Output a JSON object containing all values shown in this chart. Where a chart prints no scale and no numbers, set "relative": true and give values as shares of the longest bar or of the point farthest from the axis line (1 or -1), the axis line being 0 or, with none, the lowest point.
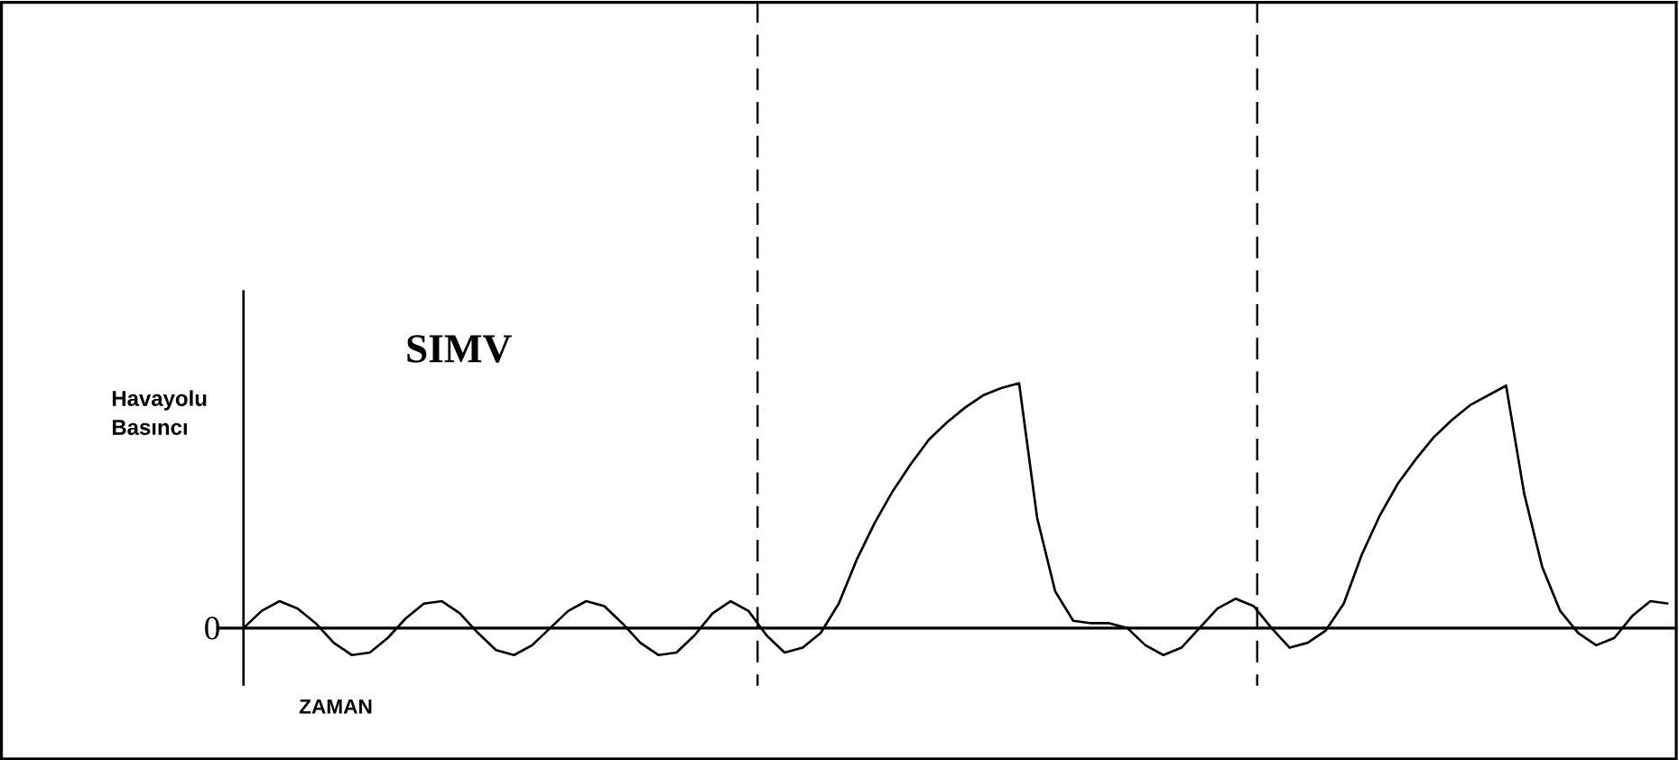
{
  "chart_data": {
    "type": "line",
    "title": "SIMV",
    "xlabel": "ZAMAN",
    "ylabel": "Havayolu Basıncı",
    "relative": true,
    "categories": [
      null,
      null,
      null,
      null,
      null,
      null,
      null,
      null,
      null,
      null,
      null,
      null,
      null,
      null,
      null,
      null,
      null,
      null,
      null,
      null,
      null,
      null,
      null,
      null,
      null,
      null,
      null,
      null,
      null,
      null,
      null,
      null,
      null,
      null,
      null,
      null,
      null,
      null,
      null,
      null,
      null,
      null,
      null,
      null,
      null,
      null,
      null,
      null,
      null,
      null,
      null,
      null,
      null,
      null,
      null,
      null,
      null,
      null,
      null,
      null,
      null,
      null,
      null,
      null,
      null,
      null,
      null,
      null,
      null,
      null,
      null,
      null,
      null,
      null,
      null,
      null,
      null,
      null,
      null,
      null
    ],
    "series": [
      {
        "color": "#000000",
        "values": [
          0,
          0.07,
          0.11,
          0.08,
          0.02,
          -0.06,
          -0.11,
          -0.1,
          -0.04,
          0.04,
          0.1,
          0.11,
          0.06,
          -0.02,
          -0.09,
          -0.11,
          -0.07,
          0,
          0.07,
          0.11,
          0.09,
          0.02,
          -0.06,
          -0.11,
          -0.1,
          -0.03,
          0.06,
          0.11,
          0.07,
          -0.03,
          -0.1,
          -0.08,
          -0.02,
          0.1,
          0.28,
          0.43,
          0.56,
          0.67,
          0.77,
          0.84,
          0.9,
          0.95,
          0.98,
          1,
          0.45,
          0.15,
          0.03,
          0.02,
          0.02,
          0,
          -0.07,
          -0.11,
          -0.08,
          0,
          0.08,
          0.12,
          0.09,
          0,
          -0.08,
          -0.06,
          -0.01,
          0.1,
          0.3,
          0.46,
          0.59,
          0.69,
          0.78,
          0.85,
          0.91,
          0.95,
          0.99,
          0.55,
          0.25,
          0.07,
          -0.02,
          -0.07,
          -0.04,
          0.05,
          0.11,
          0.1
        ]
      }
    ],
    "annotations": [
      "0"
    ]
  }
}
